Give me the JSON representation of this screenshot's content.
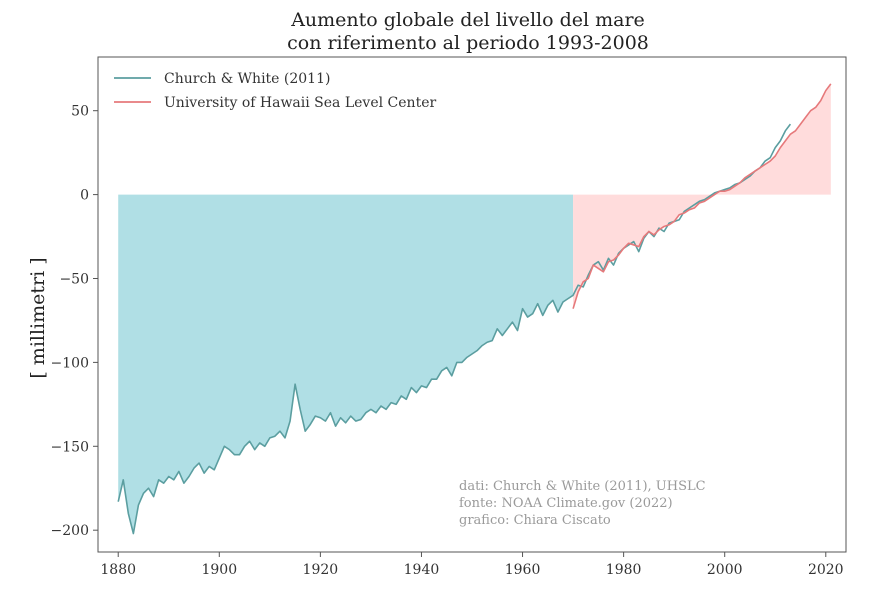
{
  "chart_data": {
    "type": "line",
    "title": [
      "Aumento globale del livello del mare",
      "con riferimento al periodo 1993-2008"
    ],
    "xlabel": "",
    "ylabel": "[ millimetri ]",
    "xlim": [
      1876,
      2024
    ],
    "ylim": [
      -213,
      82
    ],
    "xticks": [
      1880,
      1900,
      1920,
      1940,
      1960,
      1980,
      2000,
      2020
    ],
    "yticks": [
      -200,
      -150,
      -100,
      -50,
      0,
      50
    ],
    "grid": false,
    "legend_position": "top-left",
    "colors": {
      "church_white": "#5b9ea0",
      "uhslc": "#e6797b",
      "fill_church": "#b0dfe5",
      "fill_uhslc": "#ffdcdc"
    },
    "series": [
      {
        "name": "Church & White (2011)",
        "color": "#5b9ea0",
        "x": [
          1880,
          1881,
          1882,
          1883,
          1884,
          1885,
          1886,
          1887,
          1888,
          1889,
          1890,
          1891,
          1892,
          1893,
          1894,
          1895,
          1896,
          1897,
          1898,
          1899,
          1900,
          1901,
          1902,
          1903,
          1904,
          1905,
          1906,
          1907,
          1908,
          1909,
          1910,
          1911,
          1912,
          1913,
          1914,
          1915,
          1916,
          1917,
          1918,
          1919,
          1920,
          1921,
          1922,
          1923,
          1924,
          1925,
          1926,
          1927,
          1928,
          1929,
          1930,
          1931,
          1932,
          1933,
          1934,
          1935,
          1936,
          1937,
          1938,
          1939,
          1940,
          1941,
          1942,
          1943,
          1944,
          1945,
          1946,
          1947,
          1948,
          1949,
          1950,
          1951,
          1952,
          1953,
          1954,
          1955,
          1956,
          1957,
          1958,
          1959,
          1960,
          1961,
          1962,
          1963,
          1964,
          1965,
          1966,
          1967,
          1968,
          1969,
          1970,
          1971,
          1972,
          1973,
          1974,
          1975,
          1976,
          1977,
          1978,
          1979,
          1980,
          1981,
          1982,
          1983,
          1984,
          1985,
          1986,
          1987,
          1988,
          1989,
          1990,
          1991,
          1992,
          1993,
          1994,
          1995,
          1996,
          1997,
          1998,
          1999,
          2000,
          2001,
          2002,
          2003,
          2004,
          2005,
          2006,
          2007,
          2008,
          2009,
          2010,
          2011,
          2012,
          2013
        ],
        "y": [
          -183,
          -170,
          -190,
          -202,
          -185,
          -178,
          -175,
          -180,
          -170,
          -172,
          -168,
          -170,
          -165,
          -172,
          -168,
          -163,
          -160,
          -166,
          -162,
          -164,
          -157,
          -150,
          -152,
          -155,
          -155,
          -150,
          -147,
          -152,
          -148,
          -150,
          -145,
          -144,
          -141,
          -145,
          -135,
          -113,
          -128,
          -141,
          -137,
          -132,
          -133,
          -135,
          -130,
          -138,
          -133,
          -136,
          -132,
          -135,
          -134,
          -130,
          -128,
          -130,
          -126,
          -128,
          -124,
          -125,
          -120,
          -122,
          -115,
          -118,
          -114,
          -115,
          -110,
          -110,
          -105,
          -103,
          -108,
          -100,
          -100,
          -97,
          -95,
          -93,
          -90,
          -88,
          -87,
          -80,
          -84,
          -80,
          -76,
          -81,
          -68,
          -73,
          -71,
          -65,
          -72,
          -66,
          -63,
          -70,
          -64,
          -62,
          -60,
          -54,
          -55,
          -48,
          -42,
          -40,
          -45,
          -38,
          -42,
          -35,
          -32,
          -30,
          -28,
          -34,
          -26,
          -22,
          -25,
          -20,
          -22,
          -17,
          -16,
          -15,
          -10,
          -8,
          -6,
          -4,
          -3,
          -1,
          1,
          2,
          3,
          4,
          6,
          7,
          9,
          11,
          14,
          16,
          20,
          22,
          28,
          32,
          38,
          42
        ]
      },
      {
        "name": "University of Hawaii Sea Level Center",
        "color": "#e6797b",
        "x": [
          1970,
          1971,
          1972,
          1973,
          1974,
          1975,
          1976,
          1977,
          1978,
          1979,
          1980,
          1981,
          1982,
          1983,
          1984,
          1985,
          1986,
          1987,
          1988,
          1989,
          1990,
          1991,
          1992,
          1993,
          1994,
          1995,
          1996,
          1997,
          1998,
          1999,
          2000,
          2001,
          2002,
          2003,
          2004,
          2005,
          2006,
          2007,
          2008,
          2009,
          2010,
          2011,
          2012,
          2013,
          2014,
          2015,
          2016,
          2017,
          2018,
          2019,
          2020,
          2021
        ],
        "y": [
          -68,
          -58,
          -52,
          -50,
          -42,
          -44,
          -46,
          -40,
          -39,
          -36,
          -32,
          -29,
          -30,
          -31,
          -25,
          -22,
          -24,
          -21,
          -19,
          -18,
          -16,
          -12,
          -11,
          -9,
          -8,
          -5,
          -4,
          -2,
          0,
          2,
          2,
          3,
          5,
          7,
          10,
          12,
          14,
          16,
          18,
          20,
          23,
          28,
          32,
          36,
          38,
          42,
          46,
          50,
          52,
          56,
          62,
          66
        ]
      }
    ],
    "annotations": [
      "dati: Church & White (2011), UHSLC",
      "fonte: NOAA Climate.gov (2022)",
      "grafico: Chiara Ciscato"
    ]
  }
}
